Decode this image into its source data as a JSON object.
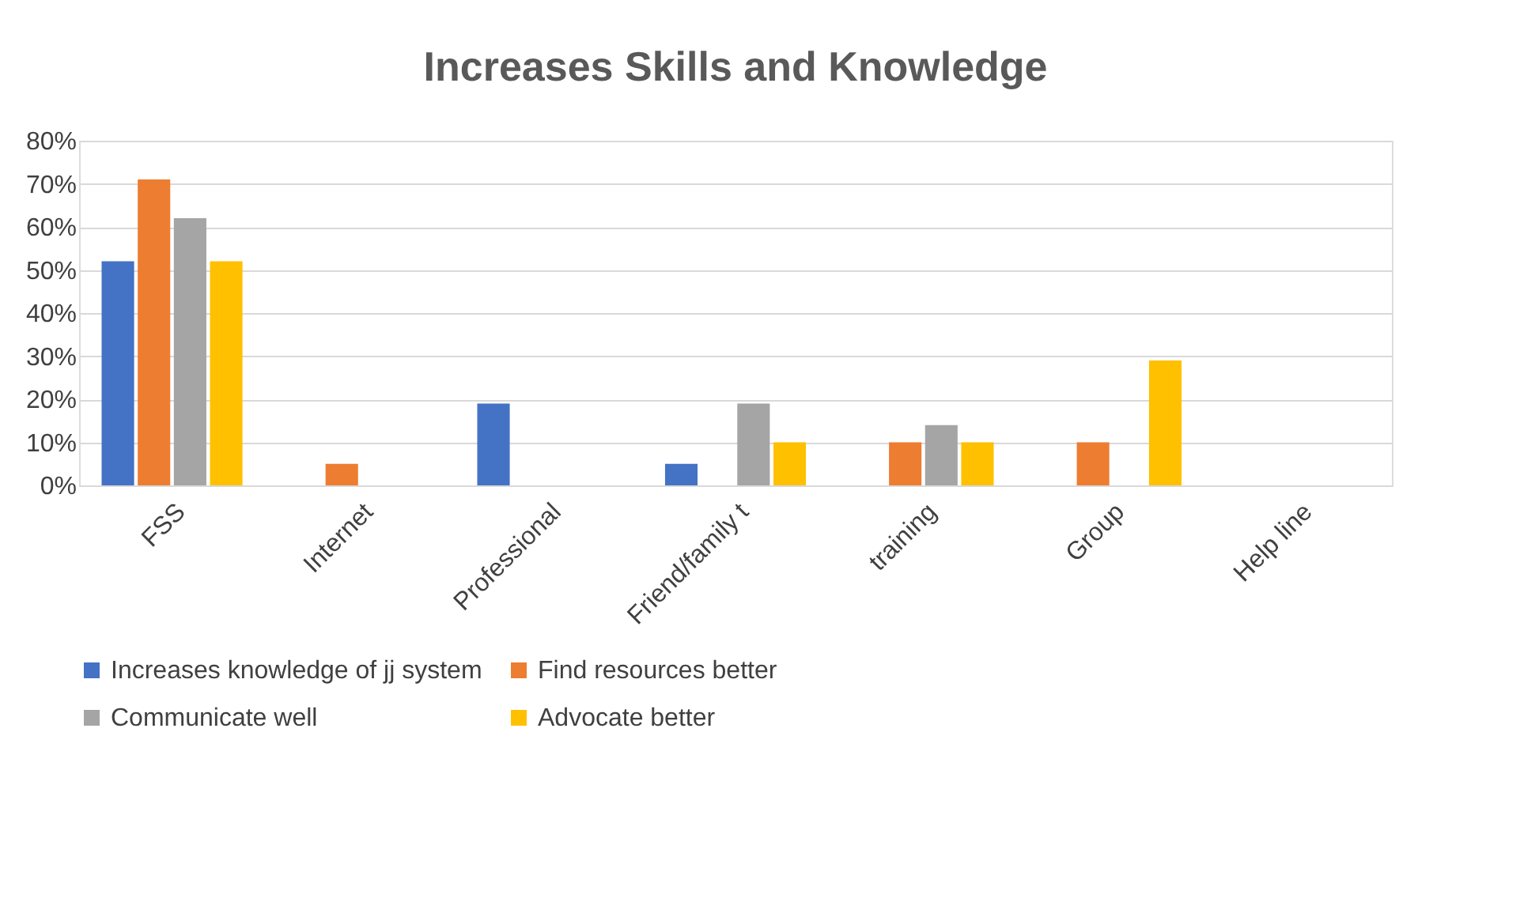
{
  "chart_data": {
    "type": "bar",
    "title": "Increases Skills and Knowledge",
    "categories": [
      "FSS",
      "Internet",
      "Professional",
      "Friend/family t",
      "training",
      "Group",
      "Help line"
    ],
    "series": [
      {
        "name": "Increases knowledge of jj  system",
        "color": "#4472c4",
        "values": [
          52,
          0,
          19,
          5,
          0,
          0,
          0
        ]
      },
      {
        "name": "Find resources better",
        "color": "#ed7d31",
        "values": [
          71,
          5,
          0,
          0,
          10,
          10,
          0
        ]
      },
      {
        "name": "Communicate well",
        "color": "#a5a5a5",
        "values": [
          62,
          0,
          0,
          19,
          14,
          0,
          0
        ]
      },
      {
        "name": "Advocate better",
        "color": "#ffc000",
        "values": [
          52,
          0,
          0,
          10,
          10,
          29,
          0
        ]
      }
    ],
    "ylim": [
      0,
      80
    ],
    "yticks": [
      {
        "value": 0,
        "label": "0%"
      },
      {
        "value": 10,
        "label": "10%"
      },
      {
        "value": 20,
        "label": "20%"
      },
      {
        "value": 30,
        "label": "30%"
      },
      {
        "value": 40,
        "label": "40%"
      },
      {
        "value": 50,
        "label": "50%"
      },
      {
        "value": 60,
        "label": "60%"
      },
      {
        "value": 70,
        "label": "70%"
      },
      {
        "value": 80,
        "label": "80%"
      }
    ],
    "grid": "y",
    "legend": "bottom"
  }
}
